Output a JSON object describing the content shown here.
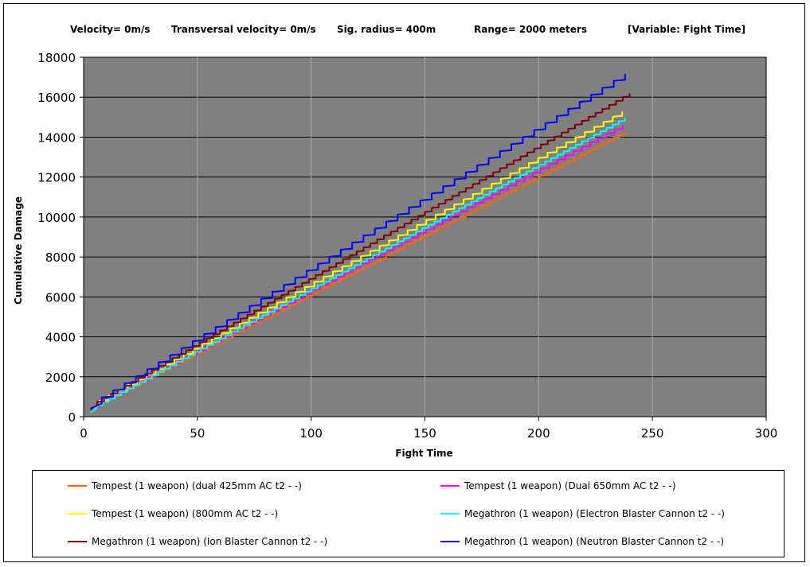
{
  "header": {
    "velocity": "Velocity= 0m/s",
    "transversal": "Transversal velocity= 0m/s",
    "sig_radius": "Sig. radius= 400m",
    "range": "Range= 2000 meters",
    "variable": "[Variable: Fight Time]"
  },
  "chart_data": {
    "type": "line",
    "title": "",
    "xlabel": "Fight Time",
    "ylabel": "Cumulative Damage",
    "xlim": [
      0,
      300
    ],
    "ylim": [
      0,
      18000
    ],
    "xticks": [
      0,
      50,
      100,
      150,
      200,
      250,
      300
    ],
    "yticks": [
      0,
      2000,
      4000,
      6000,
      8000,
      10000,
      12000,
      14000,
      16000,
      18000
    ],
    "plot_background": "#808080",
    "grid": true,
    "legend_position": "bottom",
    "series": [
      {
        "name": "Tempest (1 weapon) (dual 425mm AC t2 - -)",
        "color": "#ff6600",
        "x": [
          3,
          240
        ],
        "y": [
          250,
          14200
        ],
        "step": 2.5
      },
      {
        "name": "Tempest (1 weapon) (Dual 650mm AC t2 - -)",
        "color": "#ff00ff",
        "x": [
          3,
          240
        ],
        "y": [
          300,
          14600
        ],
        "step": 3.6
      },
      {
        "name": "Tempest (1 weapon) (800mm AC t2 - -)",
        "color": "#ffff00",
        "x": [
          3,
          240
        ],
        "y": [
          350,
          15300
        ],
        "step": 4.1
      },
      {
        "name": "Megathron (1 weapon) (Electron Blaster Cannon t2 - -)",
        "color": "#00ffff",
        "x": [
          3,
          240
        ],
        "y": [
          200,
          14900
        ],
        "step": 2.7
      },
      {
        "name": "Megathron (1 weapon) (Ion Blaster Cannon t2 - -)",
        "color": "#800000",
        "x": [
          3,
          240
        ],
        "y": [
          350,
          16000
        ],
        "step": 3.0
      },
      {
        "name": "Megathron (1 weapon) (Neutron Blaster Cannon t2 - -)",
        "color": "#0000ff",
        "x": [
          3,
          240
        ],
        "y": [
          400,
          17100
        ],
        "step": 5.0
      }
    ]
  }
}
